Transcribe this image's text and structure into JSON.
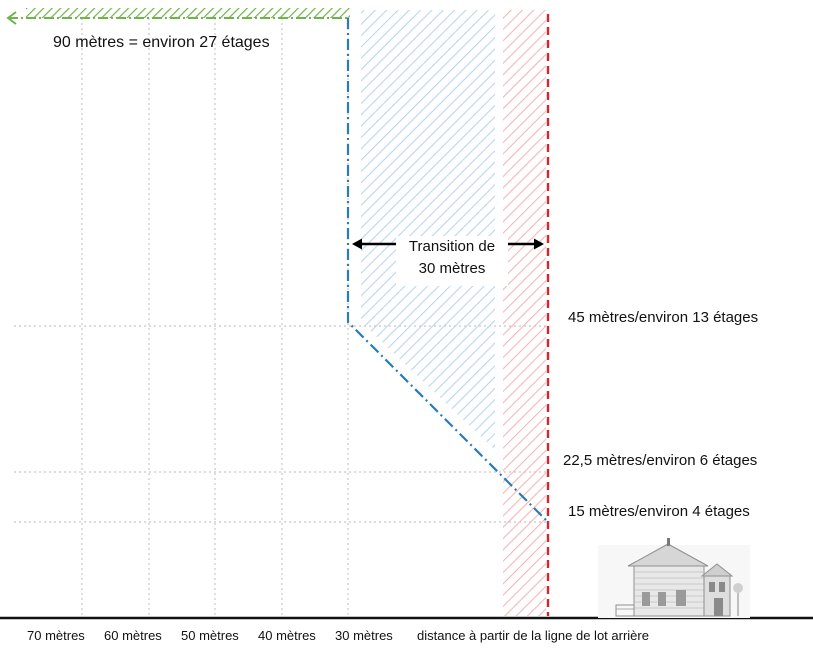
{
  "diagram": {
    "labels": {
      "top_height": "90 mètres = environ 27 étages",
      "height_45": "45 mètres/environ 13 étages",
      "height_22": "22,5 mètres/environ 6 étages",
      "height_15": "15 mètres/environ 4 étages",
      "transition_line1": "Transition de",
      "transition_line2": "30 mètres"
    },
    "x_axis": {
      "ticks": [
        "70 mètres",
        "60 mètres",
        "50 mètres",
        "40 mètres",
        "30 mètres"
      ],
      "caption": "distance à partir de la ligne de lot arrière"
    },
    "colors": {
      "green": "#6fb34a",
      "blue_line": "#2b7bb9",
      "blue_hatch": "#b9d6ee",
      "red_line": "#d9242b",
      "red_hatch": "#f2b8b8",
      "grid": "#c8c8c8",
      "ground": "#111111"
    },
    "icons": {
      "house": "house-icon"
    }
  }
}
